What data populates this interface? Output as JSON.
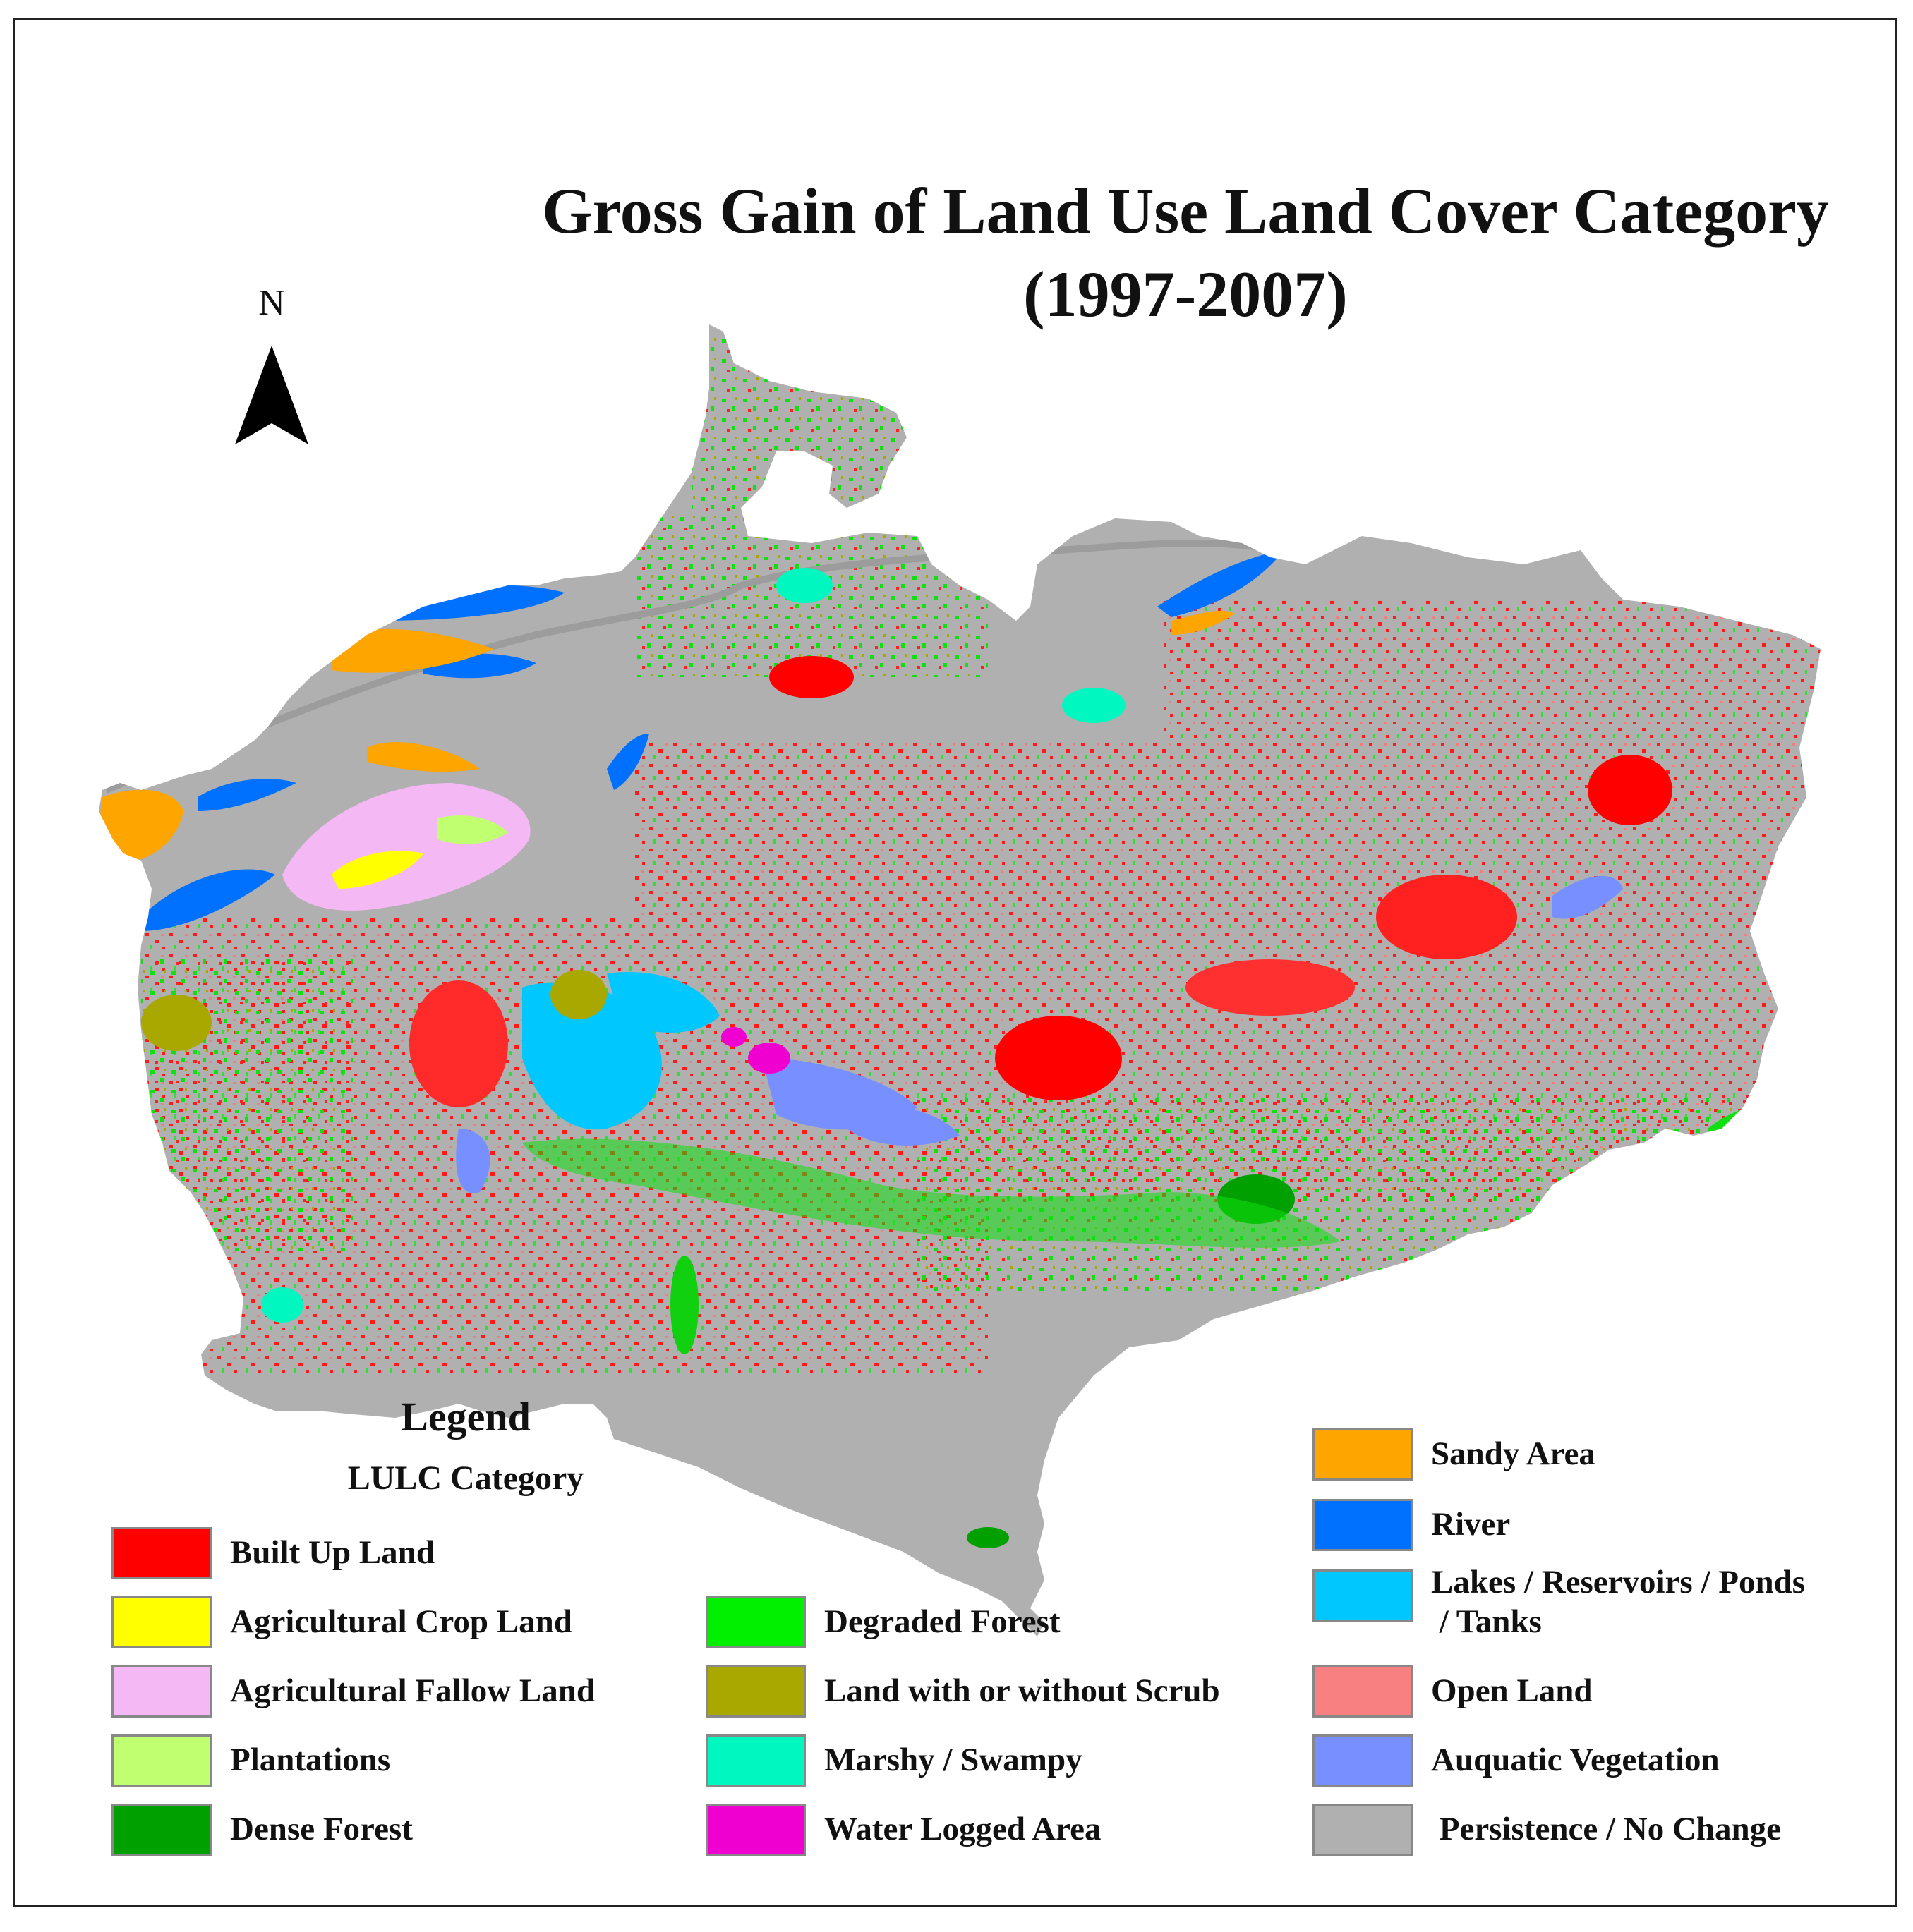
{
  "title": {
    "line1": "Gross Gain of Land Use Land Cover Category",
    "line2": "(1997-2007)"
  },
  "north_arrow": {
    "label": "N",
    "icon": "north-arrow-icon"
  },
  "legend": {
    "heading": "Legend",
    "subheading": "LULC Category",
    "items": [
      {
        "label": "Built Up Land",
        "color": "#ff0000"
      },
      {
        "label": "Agricultural Crop Land",
        "color": "#ffff00"
      },
      {
        "label": "Agricultural Fallow Land",
        "color": "#f4b8f4"
      },
      {
        "label": "Plantations",
        "color": "#c0ff70"
      },
      {
        "label": "Dense Forest",
        "color": "#00a000"
      },
      {
        "label": "Degraded Forest",
        "color": "#00f000"
      },
      {
        "label": "Land with or without Scrub",
        "color": "#a8a800"
      },
      {
        "label": "Marshy / Swampy",
        "color": "#00f8c0"
      },
      {
        "label": "Water Logged Area",
        "color": "#f000d0"
      },
      {
        "label": "Sandy Area",
        "color": "#ffa500"
      },
      {
        "label": "River",
        "color": "#0070ff"
      },
      {
        "label": "Lakes / Reservoirs / Ponds\n / Tanks",
        "color": "#00c8ff"
      },
      {
        "label": "Open Land",
        "color": "#f88080"
      },
      {
        "label": "Auquatic Vegetation",
        "color": "#7890ff"
      },
      {
        "label": " Persistence / No Change",
        "color": "#b0b0b0"
      }
    ]
  }
}
